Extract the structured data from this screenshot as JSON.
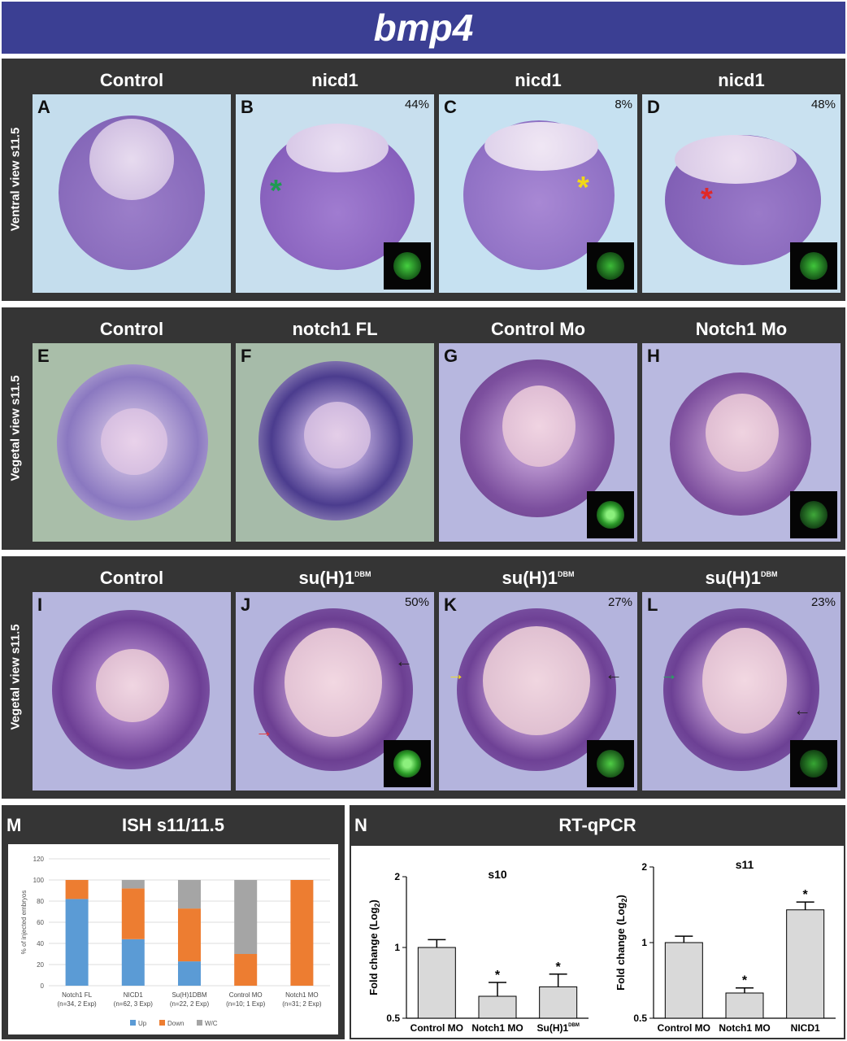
{
  "title": "bmp4",
  "rows": [
    {
      "label": "Ventral view s11.5",
      "cols": [
        "Control",
        "nicd1",
        "nicd1",
        "nicd1"
      ],
      "panels": [
        {
          "letter": "A",
          "pct": ""
        },
        {
          "letter": "B",
          "pct": "44%"
        },
        {
          "letter": "C",
          "pct": "8%"
        },
        {
          "letter": "D",
          "pct": "48%"
        }
      ]
    },
    {
      "label": "Vegetal view s11.5",
      "cols": [
        "Control",
        "notch1 FL",
        "Control Mo",
        "Notch1 Mo"
      ],
      "panels": [
        {
          "letter": "E",
          "pct": ""
        },
        {
          "letter": "F",
          "pct": ""
        },
        {
          "letter": "G",
          "pct": ""
        },
        {
          "letter": "H",
          "pct": ""
        }
      ]
    },
    {
      "label": "Vegetal view s11.5",
      "cols": [
        "Control",
        "su(H)1",
        "su(H)1",
        "su(H)1"
      ],
      "col_sup": [
        "",
        "DBM",
        "DBM",
        "DBM"
      ],
      "panels": [
        {
          "letter": "I",
          "pct": ""
        },
        {
          "letter": "J",
          "pct": "50%"
        },
        {
          "letter": "K",
          "pct": "27%"
        },
        {
          "letter": "L",
          "pct": "23%"
        }
      ]
    }
  ],
  "panel_m": {
    "letter": "M",
    "title": "ISH s11/11.5"
  },
  "panel_n": {
    "letter": "N",
    "title": "RT-qPCR"
  },
  "colors": {
    "up": "#5b9bd5",
    "down": "#ed7d31",
    "wc": "#a5a5a5",
    "bar": "#d9d9d9"
  },
  "chart_data": [
    {
      "type": "bar",
      "stacked": true,
      "title": "",
      "ylabel": "% of injected embryos",
      "ylim": [
        0,
        120
      ],
      "yticks": [
        0,
        20,
        40,
        60,
        80,
        100,
        120
      ],
      "categories": [
        "Notch1 FL",
        "NICD1",
        "Su(H)1DBM",
        "Control MO",
        "Notch1 MO"
      ],
      "category_notes": [
        "(n=34, 2 Exp)",
        "(n=62, 3 Exp)",
        "(n=22, 2 Exp)",
        "(n=10; 1 Exp)",
        "(n=31; 2 Exp)"
      ],
      "series": [
        {
          "name": "Up",
          "values": [
            82,
            44,
            23,
            0,
            0
          ]
        },
        {
          "name": "Down",
          "values": [
            18,
            48,
            50,
            30,
            100
          ]
        },
        {
          "name": "W/C",
          "values": [
            0,
            8,
            27,
            70,
            0
          ]
        }
      ],
      "legend": "bottom",
      "grid": true
    },
    {
      "type": "bar",
      "title": "s10",
      "ylabel": "Fold change (Log",
      "ylabel_sub": "2",
      "ylabel_end": ")",
      "yscale": "log2",
      "ylim": [
        0.5,
        2
      ],
      "yticks": [
        "0.5",
        "1",
        "2"
      ],
      "categories": [
        "Control MO",
        "Notch1 MO",
        "Su(H)1"
      ],
      "category_sup": [
        "",
        "",
        "DBM"
      ],
      "values": [
        1.0,
        0.62,
        0.68
      ],
      "errors": [
        0.08,
        0.09,
        0.09
      ],
      "significance": [
        "",
        "*",
        "*"
      ]
    },
    {
      "type": "bar",
      "title": "s11",
      "ylabel": "Fold change (Log",
      "ylabel_sub": "2",
      "ylabel_end": ")",
      "yscale": "log2",
      "ylim": [
        0.5,
        2
      ],
      "yticks": [
        "0.5",
        "1",
        "2"
      ],
      "categories": [
        "Control MO",
        "Notch1 MO",
        "NICD1"
      ],
      "category_sup": [
        "",
        "",
        ""
      ],
      "values": [
        1.0,
        0.63,
        1.35
      ],
      "errors": [
        0.06,
        0.03,
        0.1
      ],
      "significance": [
        "",
        "*",
        "*"
      ]
    }
  ]
}
